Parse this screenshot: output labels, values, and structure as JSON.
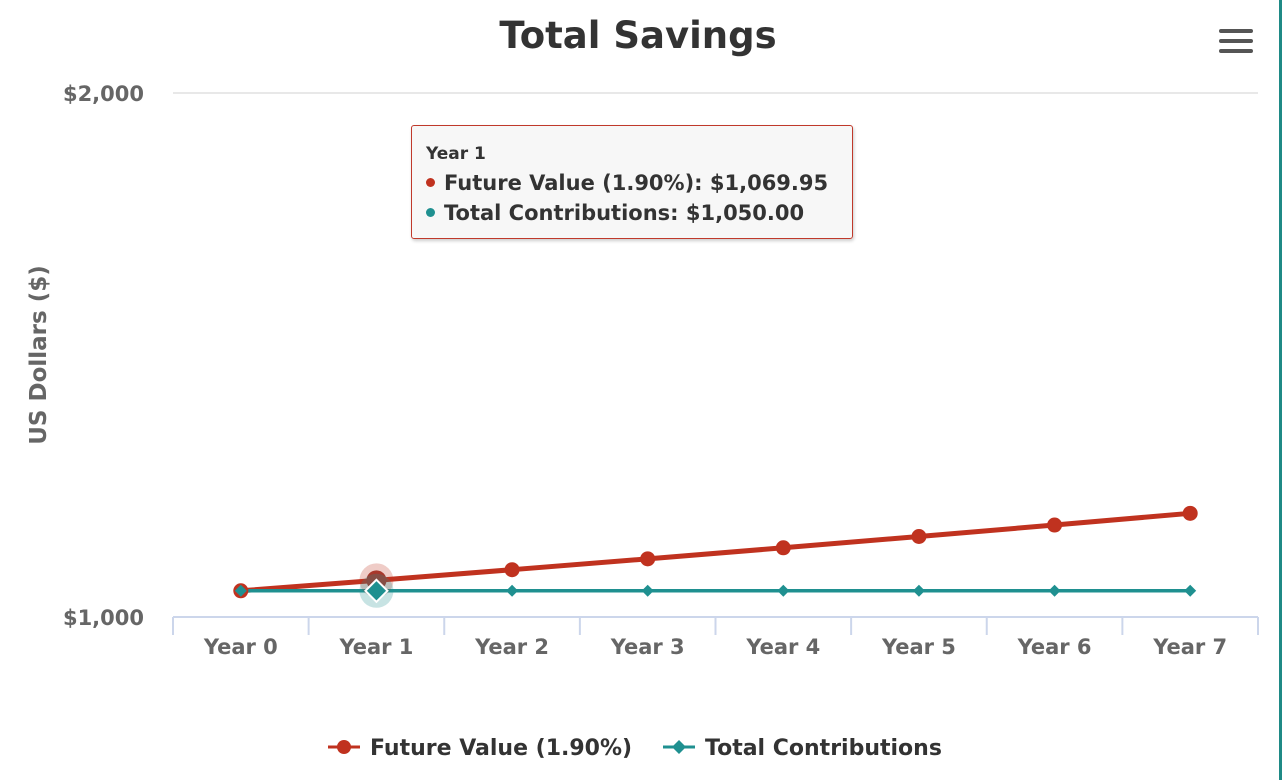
{
  "chart_data": {
    "type": "line",
    "title": "Total Savings",
    "xlabel": "",
    "ylabel": "US Dollars ($)",
    "categories": [
      "Year 0",
      "Year 1",
      "Year 2",
      "Year 3",
      "Year 4",
      "Year 5",
      "Year 6",
      "Year 7"
    ],
    "ylim": [
      1000,
      2000
    ],
    "yticks": [
      {
        "value": 1000,
        "label": "$1,000"
      },
      {
        "value": 2000,
        "label": "$2,000"
      }
    ],
    "series": [
      {
        "name": "Future Value (1.90%)",
        "color": "#c0321f",
        "marker": "circle",
        "values": [
          1050,
          1069.95,
          1090.28,
          1110.99,
          1132.1,
          1153.61,
          1175.53,
          1197.86
        ]
      },
      {
        "name": "Total Contributions",
        "color": "#1f9090",
        "marker": "diamond",
        "values": [
          1050,
          1050,
          1050,
          1050,
          1050,
          1050,
          1050,
          1050
        ]
      }
    ],
    "legend_position": "bottom-center",
    "hovered_index": 1
  },
  "tooltip": {
    "header": "Year 1",
    "rows": [
      {
        "label": "Future Value (1.90%): $1,069.95",
        "color": "#c0321f"
      },
      {
        "label": "Total Contributions: $1,050.00",
        "color": "#1f9090"
      }
    ]
  },
  "menu_icon": "hamburger-menu-icon"
}
